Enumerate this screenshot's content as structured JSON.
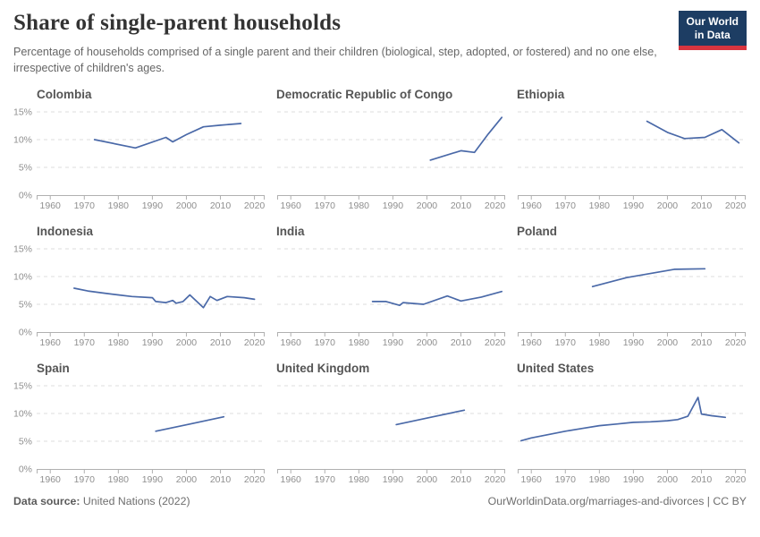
{
  "header": {
    "title": "Share of single-parent households",
    "subtitle": "Percentage of households comprised of a single parent and their children (biological, step, adopted, or fostered) and no one else, irrespective of children's ages.",
    "logo_line1": "Our World",
    "logo_line2": "in Data",
    "logo_bg_color": "#1d3d63",
    "logo_accent_color": "#d8353f"
  },
  "chart_data": {
    "type": "line",
    "layout": "small-multiples-3x3",
    "title": "Share of single-parent households",
    "xlabel": "",
    "ylabel": "",
    "x_domain": [
      1956,
      2023
    ],
    "x_ticks": [
      1960,
      1970,
      1980,
      1990,
      2000,
      2010,
      2020
    ],
    "ylim": [
      0,
      16
    ],
    "y_ticks": [
      0,
      5,
      10,
      15
    ],
    "y_tick_suffix": "%",
    "grid": "dashed-horizontal",
    "line_color": "#4a69a8",
    "axis_color": "#b0b0b0",
    "gridline_color": "#dcdcdc",
    "tick_label_color": "#8f8f8f",
    "facets": [
      {
        "title": "Colombia",
        "points": [
          [
            1973,
            10.0
          ],
          [
            1985,
            8.5
          ],
          [
            1994,
            10.4
          ],
          [
            1996,
            9.6
          ],
          [
            2000,
            10.9
          ],
          [
            2005,
            12.3
          ],
          [
            2010,
            12.6
          ],
          [
            2016,
            12.9
          ]
        ]
      },
      {
        "title": "Democratic Republic of Congo",
        "points": [
          [
            2001,
            6.3
          ],
          [
            2010,
            8.0
          ],
          [
            2014,
            7.7
          ],
          [
            2018,
            11.0
          ],
          [
            2022,
            14.0
          ]
        ]
      },
      {
        "title": "Ethiopia",
        "points": [
          [
            1994,
            13.3
          ],
          [
            2000,
            11.3
          ],
          [
            2005,
            10.2
          ],
          [
            2011,
            10.4
          ],
          [
            2016,
            11.8
          ],
          [
            2021,
            9.4
          ]
        ]
      },
      {
        "title": "Indonesia",
        "points": [
          [
            1967,
            7.9
          ],
          [
            1971,
            7.4
          ],
          [
            1976,
            7.0
          ],
          [
            1980,
            6.7
          ],
          [
            1984,
            6.4
          ],
          [
            1990,
            6.2
          ],
          [
            1991,
            5.5
          ],
          [
            1994,
            5.3
          ],
          [
            1996,
            5.7
          ],
          [
            1997,
            5.2
          ],
          [
            1999,
            5.5
          ],
          [
            2001,
            6.7
          ],
          [
            2005,
            4.4
          ],
          [
            2007,
            6.4
          ],
          [
            2009,
            5.7
          ],
          [
            2012,
            6.4
          ],
          [
            2017,
            6.2
          ],
          [
            2020,
            5.9
          ]
        ]
      },
      {
        "title": "India",
        "points": [
          [
            1984,
            5.5
          ],
          [
            1988,
            5.5
          ],
          [
            1992,
            4.8
          ],
          [
            1993,
            5.3
          ],
          [
            1999,
            5.0
          ],
          [
            2006,
            6.5
          ],
          [
            2010,
            5.6
          ],
          [
            2016,
            6.3
          ],
          [
            2022,
            7.3
          ]
        ]
      },
      {
        "title": "Poland",
        "points": [
          [
            1978,
            8.2
          ],
          [
            1988,
            9.8
          ],
          [
            2002,
            11.3
          ],
          [
            2011,
            11.4
          ]
        ]
      },
      {
        "title": "Spain",
        "points": [
          [
            1991,
            6.8
          ],
          [
            2001,
            8.1
          ],
          [
            2011,
            9.4
          ]
        ]
      },
      {
        "title": "United Kingdom",
        "points": [
          [
            1991,
            8.0
          ],
          [
            2001,
            9.3
          ],
          [
            2011,
            10.6
          ]
        ]
      },
      {
        "title": "United States",
        "points": [
          [
            1957,
            5.1
          ],
          [
            1960,
            5.6
          ],
          [
            1965,
            6.2
          ],
          [
            1970,
            6.8
          ],
          [
            1975,
            7.3
          ],
          [
            1980,
            7.8
          ],
          [
            1985,
            8.1
          ],
          [
            1990,
            8.4
          ],
          [
            1995,
            8.5
          ],
          [
            2000,
            8.7
          ],
          [
            2003,
            8.9
          ],
          [
            2006,
            9.5
          ],
          [
            2009,
            12.9
          ],
          [
            2010,
            9.9
          ],
          [
            2013,
            9.6
          ],
          [
            2017,
            9.3
          ]
        ]
      }
    ]
  },
  "footer": {
    "source_label": "Data source:",
    "source_value": " United Nations (2022)",
    "right_text": "OurWorldinData.org/marriages-and-divorces | CC BY"
  }
}
